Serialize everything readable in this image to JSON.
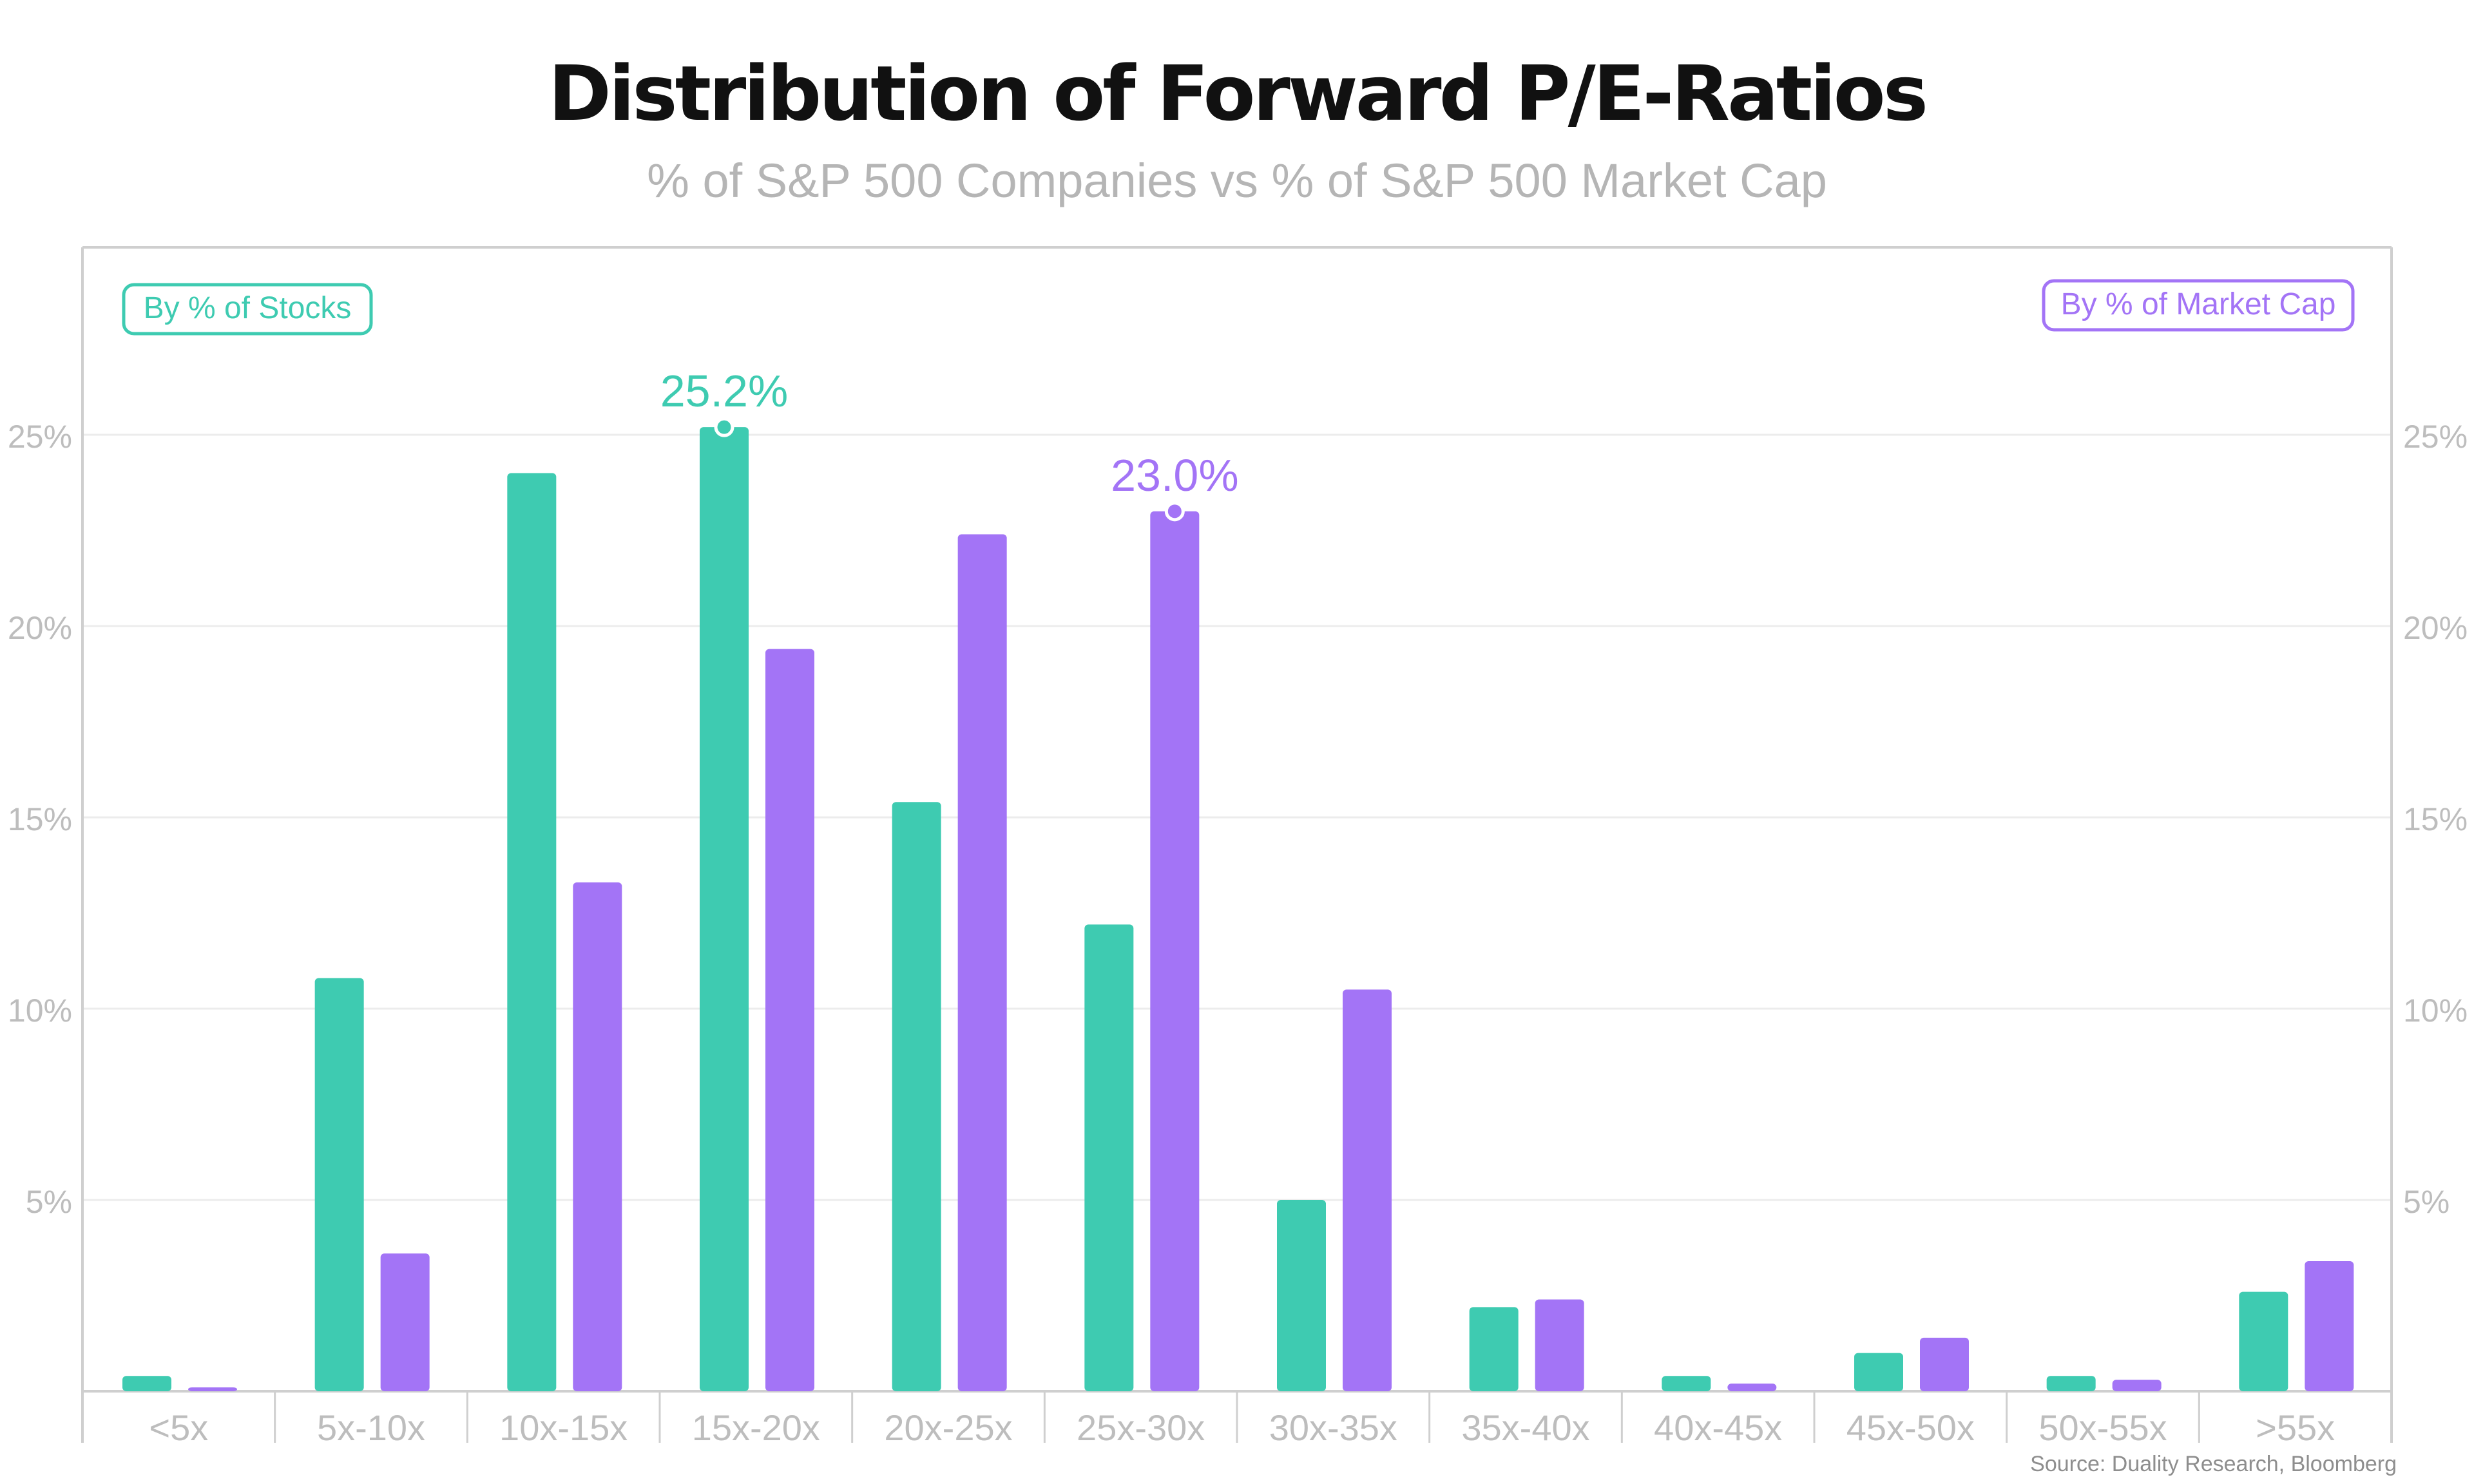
{
  "title": "Distribution of Forward P/E-Ratios",
  "subtitle": "% of S&P 500 Companies vs % of S&P 500 Market Cap",
  "source": "Source: Duality Research, Bloomberg",
  "colors": {
    "stocks": "#3ecbb1",
    "market_cap": "#a374f6",
    "axis": "#cfcfcf",
    "grid": "#ececec",
    "tick_text": "#bdbdbd"
  },
  "chart_data": {
    "type": "bar",
    "categories": [
      "<5x",
      "5x-10x",
      "10x-15x",
      "15x-20x",
      "20x-25x",
      "25x-30x",
      "30x-35x",
      "35x-40x",
      "40x-45x",
      "45x-50x",
      "50x-55x",
      ">55x"
    ],
    "series": [
      {
        "name": "By % of Stocks",
        "values": [
          0.4,
          10.8,
          24.0,
          25.2,
          15.4,
          12.2,
          5.0,
          2.2,
          0.4,
          1.0,
          0.4,
          2.6
        ],
        "legend_position": "top-left"
      },
      {
        "name": "By % of Market Cap",
        "values": [
          0.1,
          3.6,
          13.3,
          19.4,
          22.4,
          23.0,
          10.5,
          2.4,
          0.2,
          1.4,
          0.3,
          3.4
        ],
        "legend_position": "top-right"
      }
    ],
    "y_ticks": [
      "5%",
      "10%",
      "15%",
      "20%",
      "25%"
    ],
    "y_tick_values": [
      5,
      10,
      15,
      20,
      25
    ],
    "ylim": [
      0,
      29.9
    ],
    "annotations": [
      {
        "series": 0,
        "category": "15x-20x",
        "value": 25.2,
        "label": "25.2%"
      },
      {
        "series": 1,
        "category": "25x-30x",
        "value": 23.0,
        "label": "23.0%"
      }
    ],
    "grid": true
  }
}
